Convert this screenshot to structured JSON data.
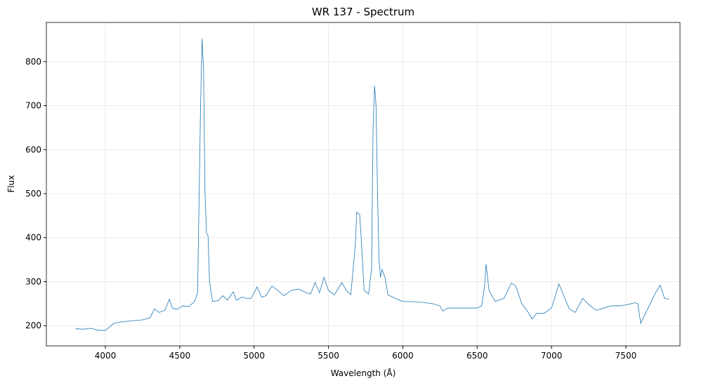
{
  "chart_data": {
    "type": "line",
    "title": "WR 137 - Spectrum",
    "xlabel": "Wavelength (Å)",
    "ylabel": "Flux",
    "x": [
      3800,
      3850,
      3900,
      3950,
      4000,
      4030,
      4060,
      4100,
      4150,
      4200,
      4250,
      4300,
      4330,
      4360,
      4400,
      4430,
      4450,
      4480,
      4520,
      4560,
      4600,
      4620,
      4640,
      4650,
      4660,
      4670,
      4680,
      4690,
      4700,
      4720,
      4760,
      4790,
      4820,
      4860,
      4880,
      4920,
      4950,
      4980,
      5020,
      5050,
      5080,
      5120,
      5160,
      5200,
      5250,
      5300,
      5350,
      5380,
      5410,
      5440,
      5470,
      5500,
      5540,
      5590,
      5620,
      5650,
      5680,
      5690,
      5710,
      5720,
      5740,
      5770,
      5790,
      5800,
      5810,
      5820,
      5830,
      5840,
      5850,
      5860,
      5880,
      5900,
      5950,
      6000,
      6100,
      6200,
      6250,
      6270,
      6300,
      6400,
      6500,
      6530,
      6550,
      6560,
      6580,
      6620,
      6680,
      6730,
      6760,
      6800,
      6840,
      6870,
      6900,
      6950,
      7000,
      7050,
      7080,
      7120,
      7160,
      7210,
      7260,
      7300,
      7350,
      7400,
      7450,
      7500,
      7560,
      7580,
      7600,
      7620,
      7650,
      7700,
      7730,
      7760,
      7790
    ],
    "series": [
      {
        "color": "#1f77b4",
        "values": [
          193,
          192,
          194,
          190,
          189,
          198,
          206,
          208,
          210,
          212,
          213,
          218,
          238,
          230,
          235,
          260,
          240,
          237,
          245,
          243,
          255,
          275,
          700,
          852,
          780,
          500,
          410,
          405,
          300,
          255,
          257,
          268,
          258,
          277,
          258,
          265,
          262,
          262,
          288,
          265,
          268,
          290,
          280,
          268,
          280,
          283,
          275,
          272,
          298,
          275,
          310,
          280,
          270,
          298,
          280,
          270,
          380,
          458,
          452,
          400,
          280,
          272,
          330,
          650,
          745,
          700,
          500,
          350,
          310,
          328,
          310,
          270,
          262,
          255,
          254,
          250,
          245,
          233,
          240,
          240,
          240,
          245,
          290,
          340,
          280,
          255,
          262,
          297,
          290,
          250,
          232,
          215,
          228,
          228,
          240,
          295,
          270,
          238,
          230,
          262,
          245,
          235,
          240,
          245,
          245,
          247,
          252,
          250,
          205,
          220,
          240,
          275,
          292,
          262,
          260
        ]
      }
    ],
    "xlim": [
      3603,
      7864
    ],
    "ylim": [
      154,
      889
    ],
    "xticks": [
      4000,
      4500,
      5000,
      5500,
      6000,
      6500,
      7000,
      7500
    ],
    "yticks": [
      200,
      300,
      400,
      500,
      600,
      700,
      800
    ],
    "grid": true
  }
}
